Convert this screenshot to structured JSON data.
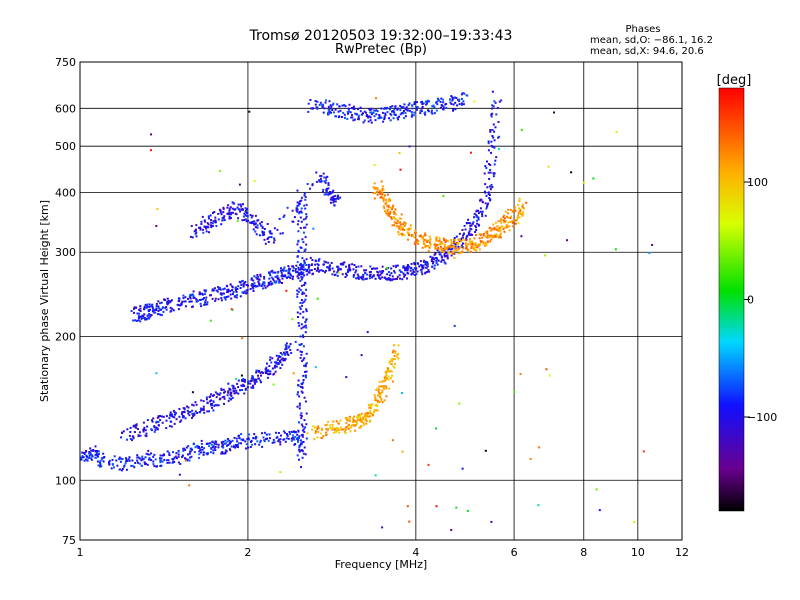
{
  "chart_data": {
    "type": "scatter",
    "title": "Tromsø 20120503 19:32:00–19:33:43",
    "subtitle": "RwPretec (Bp)",
    "xlabel": "Frequency [MHz]",
    "ylabel": "Stationary phase Virtual Height [km]",
    "x_scale": "log",
    "y_scale": "log",
    "xlim": [
      1,
      12
    ],
    "ylim": [
      75,
      750
    ],
    "x_ticks": [
      1,
      2,
      4,
      6,
      8,
      10,
      12
    ],
    "y_ticks": [
      75,
      100,
      200,
      300,
      400,
      500,
      600,
      750
    ],
    "grid": true,
    "legend_position": "top-right",
    "stats": {
      "heading": "Phases",
      "line_o": "mean, sd,O: −86.1, 16.2",
      "line_x": "mean, sd,X:  94.6, 20.6"
    },
    "colorbar": {
      "label": "[deg]",
      "min": -180,
      "max": 180,
      "ticks": [
        100,
        0,
        -100
      ],
      "tick_labels": [
        "100",
        "0",
        "−100"
      ],
      "colormap": "rainbow: black-purple-blue-cyan-green-yellow-orange-red"
    },
    "clusters": [
      {
        "name": "E-region trace",
        "x": [
          1.0,
          1.05,
          1.1,
          1.2,
          1.3,
          1.4,
          1.5,
          1.6,
          1.7,
          1.8,
          1.9,
          2.0,
          2.2,
          2.4,
          2.5
        ],
        "y": [
          112,
          114,
          110,
          108,
          111,
          110,
          112,
          115,
          118,
          117,
          120,
          121,
          122,
          123,
          122
        ],
        "phase": -90
      },
      {
        "name": "E-region spread",
        "x": [
          1.2,
          1.3,
          1.4,
          1.5,
          1.6,
          1.7,
          1.8,
          1.9,
          2.0,
          2.1,
          2.2,
          2.3,
          2.4
        ],
        "y": [
          125,
          128,
          132,
          136,
          140,
          145,
          150,
          155,
          160,
          165,
          172,
          180,
          190
        ],
        "phase": -100
      },
      {
        "name": "F1 lower trace",
        "x": [
          1.25,
          1.3,
          1.35,
          1.4,
          1.5,
          1.6,
          1.7,
          1.8,
          1.9,
          2.0,
          2.1,
          2.2,
          2.3,
          2.4,
          2.5,
          2.6
        ],
        "y": [
          222,
          224,
          226,
          230,
          234,
          238,
          242,
          246,
          250,
          255,
          260,
          264,
          268,
          272,
          276,
          280
        ],
        "phase": -95
      },
      {
        "name": "F2 O-mode trace",
        "x": [
          2.6,
          2.8,
          3.0,
          3.2,
          3.4,
          3.6,
          3.8,
          4.0,
          4.2,
          4.4,
          4.6,
          4.8,
          5.0,
          5.2,
          5.4,
          5.5,
          5.6
        ],
        "y": [
          282,
          278,
          275,
          272,
          270,
          271,
          273,
          278,
          283,
          290,
          300,
          315,
          335,
          360,
          410,
          500,
          640
        ],
        "phase": -100
      },
      {
        "name": "F2 X-mode trace",
        "x": [
          3.4,
          3.5,
          3.6,
          3.7,
          3.8,
          4.0,
          4.2,
          4.4,
          4.6,
          4.8,
          5.0,
          5.2,
          5.4,
          5.6,
          5.8,
          6.0,
          6.2
        ],
        "y": [
          410,
          390,
          370,
          350,
          335,
          322,
          315,
          310,
          308,
          308,
          310,
          315,
          322,
          332,
          345,
          360,
          380
        ],
        "phase": 120
      },
      {
        "name": "Lower X-mode trace",
        "x": [
          2.6,
          2.8,
          3.0,
          3.1,
          3.2,
          3.3,
          3.4,
          3.5,
          3.6,
          3.7
        ],
        "y": [
          125,
          128,
          130,
          132,
          134,
          138,
          145,
          155,
          170,
          190
        ],
        "phase": 110
      },
      {
        "name": "Top band",
        "x": [
          2.6,
          2.8,
          3.0,
          3.2,
          3.4,
          3.6,
          3.8,
          4.0,
          4.3,
          4.6,
          4.9
        ],
        "y": [
          610,
          600,
          590,
          580,
          580,
          585,
          590,
          598,
          605,
          615,
          625
        ],
        "phase": -90
      },
      {
        "name": "Vertical streak",
        "x": [
          2.5,
          2.5,
          2.5,
          2.5,
          2.5,
          2.5,
          2.5,
          2.5
        ],
        "y": [
          110,
          130,
          160,
          200,
          240,
          280,
          340,
          400
        ],
        "phase": -95
      },
      {
        "name": "Upper scatter",
        "x": [
          1.6,
          1.7,
          1.8,
          1.9,
          2.0,
          2.1,
          2.2,
          2.7,
          2.8,
          2.9
        ],
        "y": [
          330,
          345,
          360,
          370,
          355,
          340,
          320,
          430,
          400,
          380
        ],
        "phase": -100
      }
    ],
    "noise": {
      "count": 90,
      "xlim": [
        1.3,
        11.0
      ],
      "ylim": [
        78,
        650
      ]
    }
  }
}
